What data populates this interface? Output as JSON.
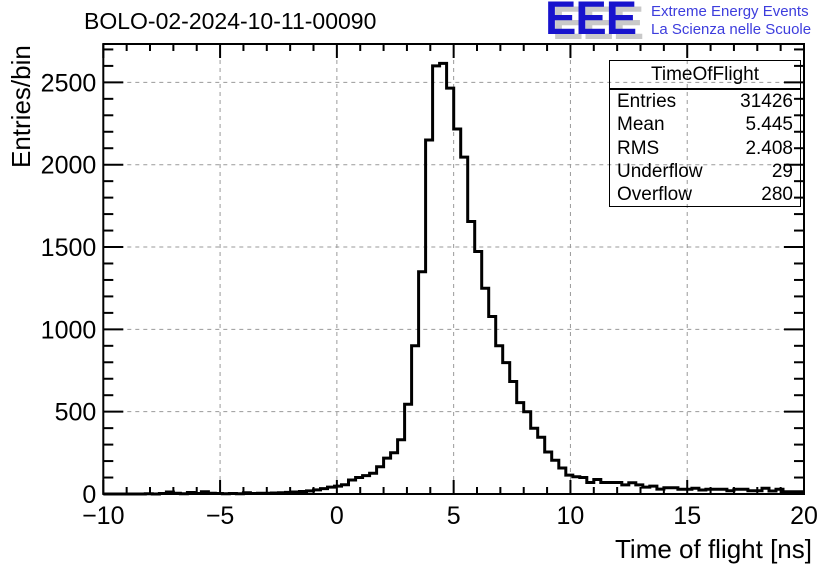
{
  "logo": {
    "acronym": "EEE",
    "line1": "Extreme Energy Events",
    "line2": "La Scienza nelle Scuole",
    "acronym_color": "#1813cd",
    "text_color": "#3d3ddd",
    "shadow_color": "#c9c9c9"
  },
  "stats": {
    "title": "TimeOfFlight",
    "rows": [
      {
        "label": "Entries",
        "value": "31426"
      },
      {
        "label": "Mean",
        "value": "5.445"
      },
      {
        "label": "RMS",
        "value": "2.408"
      },
      {
        "label": "Underflow",
        "value": "29"
      },
      {
        "label": "Overflow",
        "value": "280"
      }
    ]
  },
  "chart_data": {
    "type": "bar",
    "subtype": "step-histogram",
    "title": "BOLO-02-2024-10-11-00090",
    "xlabel": "Time of flight [ns]",
    "ylabel": "Entries/bin",
    "xlim": [
      -10,
      20
    ],
    "ylim": [
      0,
      2733
    ],
    "x_major_ticks": [
      -10,
      -5,
      0,
      5,
      10,
      15,
      20
    ],
    "x_major_labels": [
      "−10",
      "−5",
      "0",
      "5",
      "10",
      "15",
      "20"
    ],
    "x_minor_step": 1,
    "y_major_ticks": [
      0,
      500,
      1000,
      1500,
      2000,
      2500
    ],
    "y_major_labels": [
      "0",
      "500",
      "1000",
      "1500",
      "2000",
      "2500"
    ],
    "y_minor_step": 100,
    "grid": {
      "x": [
        -5,
        0,
        5,
        10,
        15
      ],
      "y": [
        500,
        1000,
        1500,
        2000,
        2500
      ],
      "style": "dashed",
      "color": "#9a9a9a"
    },
    "line_color": "#000000",
    "bins": {
      "start": -10,
      "width": 0.3,
      "counts": [
        0,
        0,
        0,
        0,
        0,
        0,
        2,
        0,
        3,
        12,
        5,
        2,
        9,
        3,
        14,
        5,
        3,
        2,
        3,
        2,
        8,
        3,
        5,
        4,
        6,
        8,
        10,
        12,
        15,
        19,
        25,
        33,
        42,
        48,
        56,
        85,
        100,
        112,
        126,
        165,
        218,
        250,
        330,
        545,
        900,
        1350,
        2150,
        2600,
        2615,
        2465,
        2217,
        2046,
        1655,
        1473,
        1250,
        1078,
        900,
        798,
        683,
        555,
        500,
        399,
        345,
        255,
        205,
        158,
        115,
        105,
        100,
        70,
        88,
        70,
        70,
        70,
        55,
        68,
        55,
        42,
        48,
        30,
        38,
        38,
        29,
        29,
        35,
        24,
        29,
        29,
        29,
        20,
        29,
        29,
        20,
        20,
        35,
        18,
        29,
        14,
        14,
        14
      ]
    }
  }
}
